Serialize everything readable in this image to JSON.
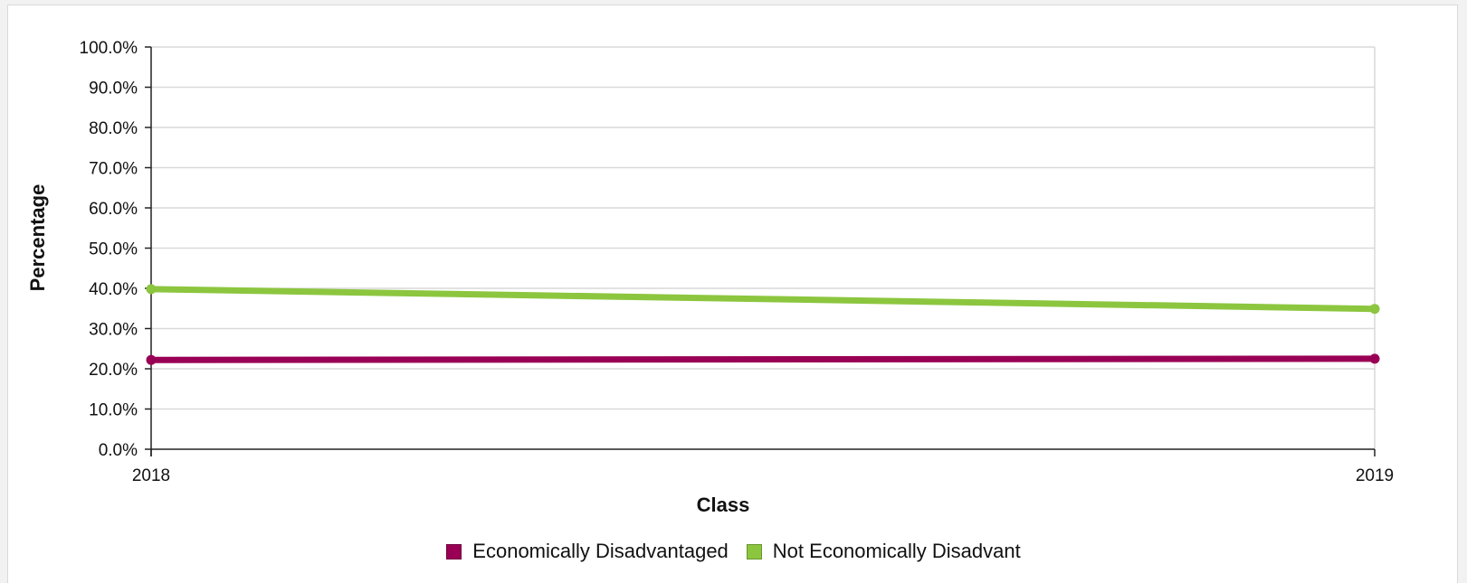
{
  "chart_data": {
    "type": "line",
    "title": "",
    "xlabel": "Class",
    "ylabel": "Percentage",
    "x": [
      "2018",
      "2019"
    ],
    "ylim": [
      0,
      100
    ],
    "yticks": [
      "0.0%",
      "10.0%",
      "20.0%",
      "30.0%",
      "40.0%",
      "50.0%",
      "60.0%",
      "70.0%",
      "80.0%",
      "90.0%",
      "100.0%"
    ],
    "grid": true,
    "legend_position": "bottom",
    "series": [
      {
        "name": "Economically Disadvantaged",
        "values": [
          22.2,
          22.5
        ],
        "color": "#990055"
      },
      {
        "name": "Not Economically Disadvant",
        "values": [
          39.8,
          34.9
        ],
        "color": "#8cc63f"
      }
    ]
  }
}
